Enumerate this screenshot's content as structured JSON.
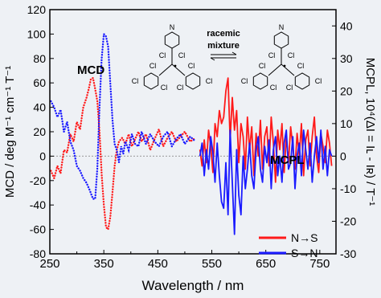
{
  "chart_data": {
    "type": "line",
    "x_label": "Wavelength / nm",
    "left_axis_label": "MCD / deg M⁻¹ cm⁻¹ T⁻¹",
    "right_axis_label": "MCPL, 10⁴(ΔI = Iʟ - Iʀ) / T⁻¹",
    "xlim": [
      250,
      780
    ],
    "x_ticks": [
      "250",
      "350",
      "450",
      "550",
      "650",
      "750"
    ],
    "left_ylim": [
      -80,
      120
    ],
    "left_ticks": [
      "-80",
      "-60",
      "-40",
      "-20",
      "0",
      "20",
      "40",
      "60",
      "80",
      "100",
      "120"
    ],
    "right_ylim": [
      -30,
      45
    ],
    "right_ticks": [
      "-30",
      "-20",
      "-10",
      "0",
      "10",
      "20",
      "30",
      "40"
    ],
    "annotations": {
      "mcd": "MCD",
      "mcpl": "MCPL",
      "racemic": "racemic",
      "mixture": "mixture"
    },
    "molecule_labels": {
      "n": "N",
      "cl": "Cl"
    },
    "colors": {
      "n_to_s": "#ff1a1a",
      "s_to_n": "#1a1aff",
      "zero_line": "#999999"
    },
    "legend": [
      {
        "name": "N→S",
        "color": "#ff1a1a"
      },
      {
        "name": "S→N",
        "color": "#1a1aff"
      }
    ],
    "series": [
      {
        "name": "N→S",
        "kind": "MCD",
        "axis": "left",
        "style": "dotted",
        "x": [
          252,
          258,
          264,
          270,
          276,
          282,
          288,
          294,
          300,
          306,
          312,
          318,
          322,
          326,
          330,
          334,
          338,
          342,
          346,
          350,
          354,
          358,
          362,
          366,
          370,
          374,
          378,
          384,
          390,
          396,
          402,
          408,
          414,
          420,
          428,
          436,
          444,
          452,
          460,
          468,
          476,
          484,
          492,
          500,
          510,
          520
        ],
        "y": [
          -12,
          -18,
          -8,
          -14,
          5,
          3,
          18,
          12,
          28,
          22,
          40,
          48,
          55,
          63,
          64,
          55,
          45,
          20,
          -15,
          -40,
          -58,
          -60,
          -50,
          -30,
          -8,
          5,
          12,
          15,
          10,
          18,
          8,
          14,
          20,
          12,
          18,
          5,
          14,
          22,
          8,
          15,
          20,
          12,
          16,
          20,
          12,
          15
        ]
      },
      {
        "name": "S→N",
        "kind": "MCD",
        "axis": "left",
        "style": "dotted",
        "x": [
          252,
          258,
          264,
          270,
          276,
          282,
          288,
          294,
          300,
          306,
          312,
          318,
          324,
          330,
          334,
          338,
          342,
          346,
          350,
          354,
          358,
          362,
          366,
          370,
          374,
          378,
          382,
          386,
          390,
          396,
          402,
          408,
          414,
          420,
          428,
          436,
          444,
          452,
          460,
          468,
          476,
          484,
          492,
          500,
          510,
          520
        ],
        "y": [
          45,
          40,
          32,
          38,
          20,
          28,
          12,
          5,
          -8,
          -12,
          -18,
          -22,
          -28,
          -35,
          -35,
          -10,
          40,
          80,
          100,
          98,
          90,
          60,
          30,
          10,
          5,
          -5,
          8,
          2,
          12,
          5,
          18,
          10,
          8,
          20,
          10,
          18,
          12,
          8,
          16,
          20,
          8,
          14,
          18,
          10,
          16,
          12
        ]
      },
      {
        "name": "N→S",
        "kind": "MCPL",
        "axis": "right",
        "style": "solid",
        "x": [
          528,
          532,
          536,
          540,
          544,
          548,
          552,
          556,
          560,
          564,
          568,
          572,
          576,
          580,
          584,
          588,
          592,
          596,
          600,
          604,
          608,
          612,
          616,
          620,
          624,
          628,
          632,
          636,
          640,
          644,
          648,
          652,
          656,
          660,
          664,
          668,
          672,
          676,
          680,
          684,
          688,
          692,
          696,
          700,
          704,
          708,
          712,
          716,
          720,
          724,
          728,
          732,
          736,
          740,
          744,
          748,
          752,
          756,
          760,
          764,
          768,
          772
        ],
        "y": [
          2,
          -3,
          5,
          -2,
          8,
          3,
          -5,
          10,
          6,
          14,
          10,
          12,
          20,
          24,
          5,
          18,
          8,
          14,
          -2,
          10,
          6,
          -4,
          12,
          2,
          9,
          -6,
          7,
          0,
          11,
          -4,
          6,
          9,
          -3,
          12,
          4,
          -8,
          8,
          2,
          10,
          -5,
          6,
          -2,
          9,
          3,
          -4,
          7,
          0,
          10,
          -6,
          5,
          8,
          -3,
          6,
          12,
          0,
          -5,
          7,
          3,
          -2,
          8,
          4,
          -3
        ]
      },
      {
        "name": "S→N",
        "kind": "MCPL",
        "axis": "right",
        "style": "solid",
        "x": [
          528,
          532,
          536,
          540,
          544,
          548,
          552,
          556,
          560,
          564,
          568,
          572,
          576,
          580,
          584,
          588,
          592,
          596,
          600,
          604,
          608,
          612,
          616,
          620,
          624,
          628,
          632,
          636,
          640,
          644,
          648,
          652,
          656,
          660,
          664,
          668,
          672,
          676,
          680,
          684,
          688,
          692,
          696,
          700,
          704,
          708,
          712,
          716,
          720,
          724,
          728,
          732,
          736,
          740,
          744,
          748,
          752,
          756,
          760,
          764,
          768,
          772
        ],
        "y": [
          0,
          4,
          -6,
          2,
          -4,
          6,
          1,
          -8,
          4,
          -6,
          -14,
          -16,
          -2,
          -18,
          8,
          -8,
          -24,
          2,
          -12,
          -18,
          0,
          -10,
          -4,
          4,
          -6,
          -10,
          2,
          6,
          -4,
          -8,
          3,
          -2,
          5,
          -10,
          2,
          6,
          -6,
          0,
          -8,
          4,
          8,
          -4,
          -2,
          6,
          -10,
          0,
          4,
          -6,
          8,
          2,
          -4,
          4,
          -8,
          0,
          6,
          -2,
          8,
          -4,
          3,
          -6,
          2,
          0
        ]
      }
    ]
  }
}
